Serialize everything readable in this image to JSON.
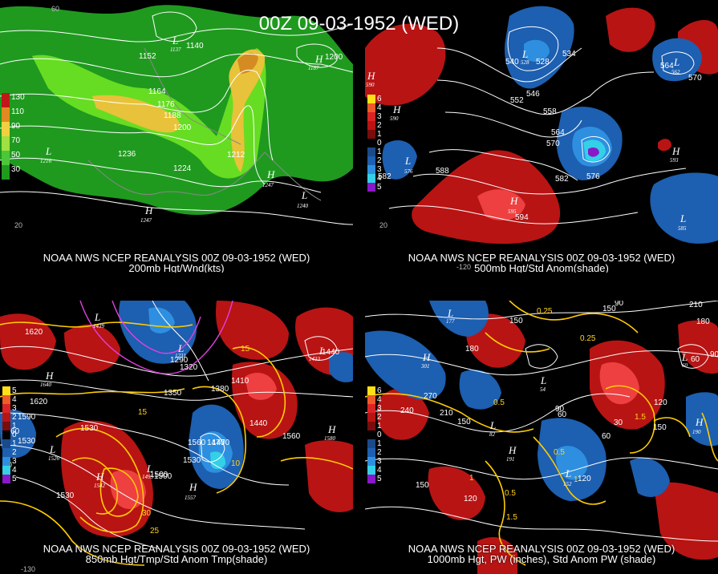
{
  "title": "00Z 09-03-1952 (WED)",
  "colors": {
    "background": "#000000",
    "contour": "#ffffff",
    "isotherm": "#ffcc00",
    "isotherm_dashed": "#e040e0",
    "anom_pos": "#b81414",
    "anom_neg": "#1d5fb0",
    "wind_low": "#1f9a1f",
    "wind_mid": "#66dd22",
    "wind_high": "#e8c23a"
  },
  "panels": [
    {
      "caption": "NOAA NWS NCEP REANALYSIS 00Z 09-03-1952 (WED)",
      "subtitle": "200mb Hgt/Wnd(kts)",
      "legend": [
        {
          "label": "130",
          "color": "#c01818"
        },
        {
          "label": "110",
          "color": "#e08a20"
        },
        {
          "label": "90",
          "color": "#f0d040"
        },
        {
          "label": "70",
          "color": "#a0e040"
        },
        {
          "label": "50",
          "color": "#4ec63a"
        },
        {
          "label": "30",
          "color": "#1f9a1f"
        }
      ],
      "contour_labels": [
        "1152",
        "1140",
        "1164",
        "1176",
        "1188",
        "1200",
        "1236",
        "1224",
        "1212",
        "1200"
      ],
      "centers": [
        {
          "type": "L",
          "value": "1137"
        },
        {
          "type": "L",
          "value": "1216"
        },
        {
          "type": "H",
          "value": "1247"
        },
        {
          "type": "H",
          "value": "1247"
        },
        {
          "type": "L",
          "value": "1240"
        },
        {
          "type": "H",
          "value": "1187"
        }
      ],
      "ticks": [
        "60",
        "20"
      ]
    },
    {
      "caption": "NOAA NWS NCEP REANALYSIS 00Z 09-03-1952 (WED)",
      "subtitle": "500mb Hgt/Std Anom(shade)",
      "legend": [
        {
          "label": "6",
          "color": "#ffe018"
        },
        {
          "label": "4",
          "color": "#ee5a2a"
        },
        {
          "label": "3",
          "color": "#d92424"
        },
        {
          "label": "2",
          "color": "#b81414"
        },
        {
          "label": "1",
          "color": "#7a0c0c"
        },
        {
          "label": "0",
          "color": "#000000"
        },
        {
          "label": "1",
          "color": "#1b4a8a"
        },
        {
          "label": "2",
          "color": "#1d5fb0"
        },
        {
          "label": "3",
          "color": "#2e8fe0"
        },
        {
          "label": "4",
          "color": "#33d0e8"
        },
        {
          "label": "5",
          "color": "#8a18c8"
        }
      ],
      "contour_labels": [
        "540",
        "528",
        "534",
        "546",
        "552",
        "558",
        "564",
        "570",
        "576",
        "582",
        "582",
        "588",
        "594",
        "564",
        "570"
      ],
      "centers": [
        {
          "type": "L",
          "value": "528"
        },
        {
          "type": "H",
          "value": "590"
        },
        {
          "type": "H",
          "value": "590"
        },
        {
          "type": "L",
          "value": "576"
        },
        {
          "type": "H",
          "value": "595"
        },
        {
          "type": "H",
          "value": "593"
        },
        {
          "type": "L",
          "value": "562"
        },
        {
          "type": "L",
          "value": "585"
        }
      ],
      "ticks": [
        "20",
        "-120"
      ]
    },
    {
      "caption": "NOAA NWS NCEP REANALYSIS 00Z 09-03-1952 (WED)",
      "subtitle": "850mb Hgt/Tmp/Std Anom Tmp(shade)",
      "legend": [
        {
          "label": "5",
          "color": "#ffe018"
        },
        {
          "label": "4",
          "color": "#ee5a2a"
        },
        {
          "label": "3",
          "color": "#d92424"
        },
        {
          "label": "2",
          "color": "#b81414"
        },
        {
          "label": "1",
          "color": "#7a0c0c"
        },
        {
          "label": "0",
          "color": "#000000"
        },
        {
          "label": "1",
          "color": "#1b4a8a"
        },
        {
          "label": "2",
          "color": "#1d5fb0"
        },
        {
          "label": "3",
          "color": "#2e8fe0"
        },
        {
          "label": "4",
          "color": "#33d0e8"
        },
        {
          "label": "5",
          "color": "#8a18c8"
        }
      ],
      "contour_labels": [
        "1620",
        "1620",
        "1590",
        "1560",
        "1530",
        "1530",
        "1500",
        "1470",
        "1350",
        "1380",
        "1410",
        "1440",
        "1560",
        "1320",
        "1290",
        "1530",
        "1560",
        "1530",
        "1500",
        "1470",
        "1440"
      ],
      "isotherm_labels": [
        "15",
        "10",
        "30",
        "25",
        "10",
        "15"
      ],
      "centers": [
        {
          "type": "L",
          "value": "1439"
        },
        {
          "type": "H",
          "value": "1640"
        },
        {
          "type": "L",
          "value": "1526"
        },
        {
          "type": "H",
          "value": "1542"
        },
        {
          "type": "L",
          "value": "1495"
        },
        {
          "type": "H",
          "value": "1557"
        },
        {
          "type": "H",
          "value": "1580"
        },
        {
          "type": "L",
          "value": "1231"
        },
        {
          "type": "L",
          "value": "1433"
        }
      ],
      "ticks": [
        "-130"
      ]
    },
    {
      "caption": "NOAA NWS NCEP REANALYSIS 00Z 09-03-1952 (WED)",
      "subtitle": "1000mb Hgt, PW (inches), Std Anom PW (shade)",
      "legend": [
        {
          "label": "6",
          "color": "#ffe018"
        },
        {
          "label": "4",
          "color": "#ee5a2a"
        },
        {
          "label": "3",
          "color": "#d92424"
        },
        {
          "label": "2",
          "color": "#b81414"
        },
        {
          "label": "1",
          "color": "#7a0c0c"
        },
        {
          "label": "0",
          "color": "#000000"
        },
        {
          "label": "1",
          "color": "#1b4a8a"
        },
        {
          "label": "2",
          "color": "#1d5fb0"
        },
        {
          "label": "3",
          "color": "#2e8fe0"
        },
        {
          "label": "4",
          "color": "#33d0e8"
        },
        {
          "label": "5",
          "color": "#8a18c8"
        }
      ],
      "contour_labels": [
        "150",
        "90",
        "210",
        "180",
        "180",
        "270",
        "240",
        "210",
        "150",
        "90",
        "120",
        "150",
        "60",
        "150",
        "120",
        "30",
        "60",
        "120",
        "90",
        "60",
        "150"
      ],
      "pw_labels": [
        "0.25",
        "0.25",
        "0.5",
        "0.5",
        "1.5",
        "1",
        "0.5",
        "1.5",
        "1"
      ],
      "centers": [
        {
          "type": "L",
          "value": "177"
        },
        {
          "type": "H",
          "value": "301"
        },
        {
          "type": "L",
          "value": "54"
        },
        {
          "type": "L",
          "value": "82"
        },
        {
          "type": "H",
          "value": "191"
        },
        {
          "type": "L",
          "value": "152"
        },
        {
          "type": "L",
          "value": "60"
        },
        {
          "type": "H",
          "value": "190"
        }
      ],
      "ticks": []
    }
  ]
}
